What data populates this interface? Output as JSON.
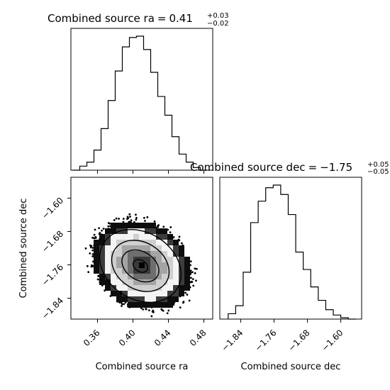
{
  "chart_data": [
    {
      "type": "histogram",
      "panel": "top-left",
      "title": "Combined source ra",
      "title_value": "0.41",
      "title_err_plus": "+0.03",
      "title_err_minus": "−0.02",
      "xlim": [
        0.33,
        0.49
      ],
      "bin_start": 0.332,
      "bin_width": 0.008,
      "counts": [
        0,
        0.03,
        0.06,
        0.15,
        0.31,
        0.52,
        0.74,
        0.92,
        0.99,
        1.0,
        0.9,
        0.73,
        0.55,
        0.41,
        0.25,
        0.12,
        0.06,
        0.02,
        0
      ],
      "x_ticks": [
        0.36,
        0.4,
        0.44,
        0.48
      ]
    },
    {
      "type": "histogram",
      "panel": "bottom-right",
      "title": "Combined source dec",
      "title_value": "−1.75",
      "title_err_plus": "+0.05",
      "title_err_minus": "−0.05",
      "xlim": [
        -1.89,
        -1.55
      ],
      "bin_start": -1.87,
      "bin_width": 0.018,
      "counts": [
        0.04,
        0.1,
        0.35,
        0.72,
        0.88,
        0.98,
        1.0,
        0.93,
        0.78,
        0.5,
        0.37,
        0.24,
        0.14,
        0.07,
        0.03,
        0.01,
        0.0
      ],
      "x_ticks": [
        "−1.84",
        "−1.76",
        "−1.68",
        "−1.60"
      ],
      "x_tick_values": [
        -1.84,
        -1.76,
        -1.68,
        -1.6
      ],
      "xlabel": "Combined source dec"
    },
    {
      "type": "2d-density",
      "panel": "bottom-left",
      "xlabel": "Combined source ra",
      "ylabel": "Combined source dec",
      "xlim": [
        0.33,
        0.49
      ],
      "ylim": [
        -1.89,
        -1.55
      ],
      "peak": {
        "x": 0.41,
        "y": -1.76
      },
      "x_ticks": [
        "0.36",
        "0.40",
        "0.44",
        "0.48"
      ],
      "x_tick_values": [
        0.36,
        0.4,
        0.44,
        0.48
      ],
      "y_ticks": [
        "−1.60",
        "−1.68",
        "−1.76",
        "−1.84"
      ],
      "y_tick_values": [
        -1.6,
        -1.68,
        -1.76,
        -1.84
      ]
    }
  ]
}
